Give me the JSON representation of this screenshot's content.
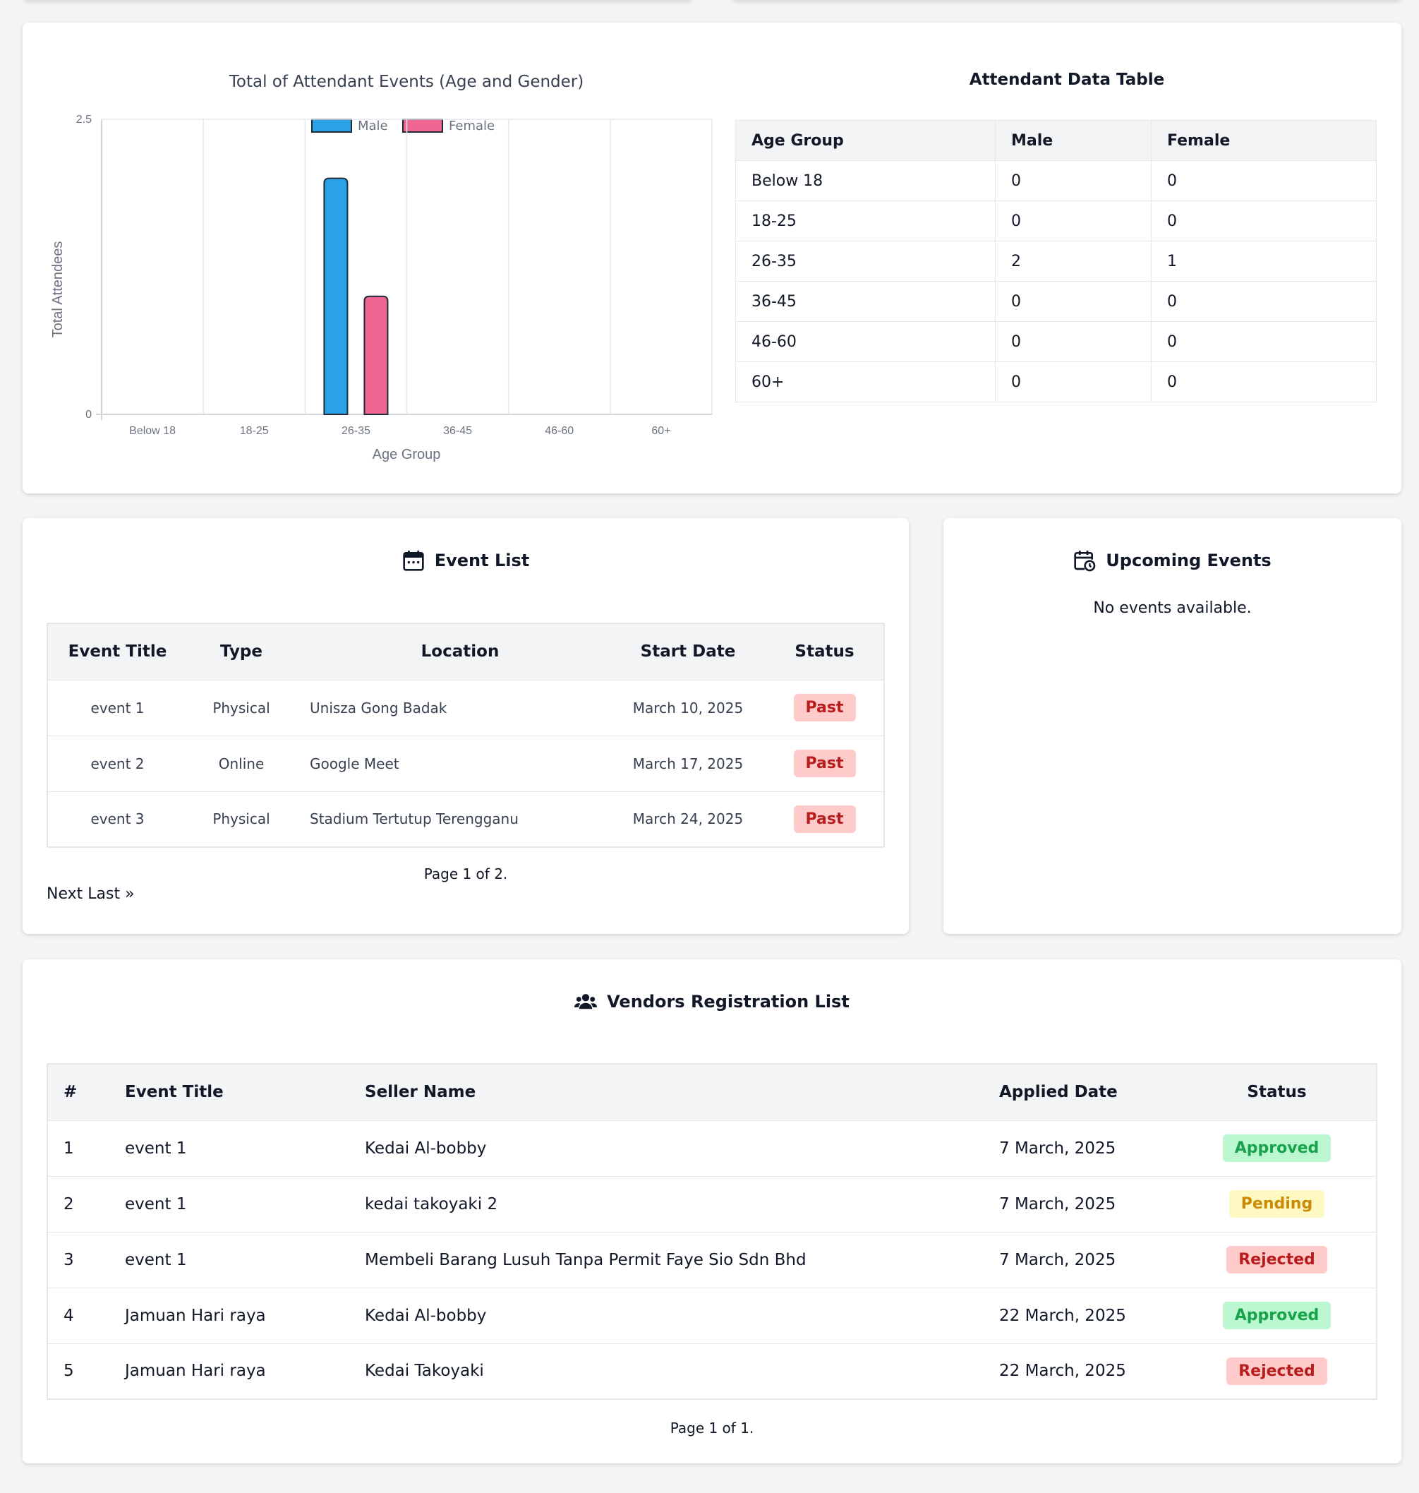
{
  "chart_data": {
    "type": "bar",
    "title": "Total of Attendant Events (Age and Gender)",
    "xlabel": "Age Group",
    "ylabel": "Total Attendees",
    "categories": [
      "Below 18",
      "18-25",
      "26-35",
      "36-45",
      "46-60",
      "60+"
    ],
    "series": [
      {
        "name": "Male",
        "values": [
          0,
          0,
          2,
          0,
          0,
          0
        ],
        "color": "#2aa3e6"
      },
      {
        "name": "Female",
        "values": [
          0,
          0,
          1,
          0,
          0,
          0
        ],
        "color": "#f06592"
      }
    ],
    "ylim": [
      0,
      2.5
    ],
    "yticks": [
      "0",
      "2.5"
    ],
    "grid": true,
    "legend": "top"
  },
  "attendant_table": {
    "title": "Attendant Data Table",
    "headers": [
      "Age Group",
      "Male",
      "Female"
    ],
    "rows": [
      [
        "Below 18",
        "0",
        "0"
      ],
      [
        "18-25",
        "0",
        "0"
      ],
      [
        "26-35",
        "2",
        "1"
      ],
      [
        "36-45",
        "0",
        "0"
      ],
      [
        "46-60",
        "0",
        "0"
      ],
      [
        "60+",
        "0",
        "0"
      ]
    ]
  },
  "event_list": {
    "title": "Event List",
    "icon": "calendar-icon",
    "headers": [
      "Event Title",
      "Type",
      "Location",
      "Start Date",
      "Status"
    ],
    "rows": [
      [
        "event 1",
        "Physical",
        "Unisza Gong Badak",
        "March 10, 2025",
        "Past"
      ],
      [
        "event 2",
        "Online",
        "Google Meet",
        "March 17, 2025",
        "Past"
      ],
      [
        "event 3",
        "Physical",
        "Stadium Tertutup Terengganu",
        "March 24, 2025",
        "Past"
      ]
    ],
    "page_info": "Page 1 of 2.",
    "pagination": "Next Last »"
  },
  "upcoming": {
    "title": "Upcoming Events",
    "icon": "calendar-clock-icon",
    "empty_text": "No events available."
  },
  "vendors": {
    "title": "Vendors Registration List",
    "icon": "users-icon",
    "headers": [
      "#",
      "Event Title",
      "Seller Name",
      "Applied Date",
      "Status"
    ],
    "rows": [
      [
        "1",
        "event 1",
        "Kedai Al-bobby",
        "7 March, 2025",
        "Approved"
      ],
      [
        "2",
        "event 1",
        "kedai takoyaki 2",
        "7 March, 2025",
        "Pending"
      ],
      [
        "3",
        "event 1",
        "Membeli Barang Lusuh Tanpa Permit Faye Sio Sdn Bhd",
        "7 March, 2025",
        "Rejected"
      ],
      [
        "4",
        "Jamuan Hari raya",
        "Kedai Al-bobby",
        "22 March, 2025",
        "Approved"
      ],
      [
        "5",
        "Jamuan Hari raya",
        "Kedai Takoyaki",
        "22 March, 2025",
        "Rejected"
      ]
    ],
    "page_info": "Page 1 of 1."
  }
}
